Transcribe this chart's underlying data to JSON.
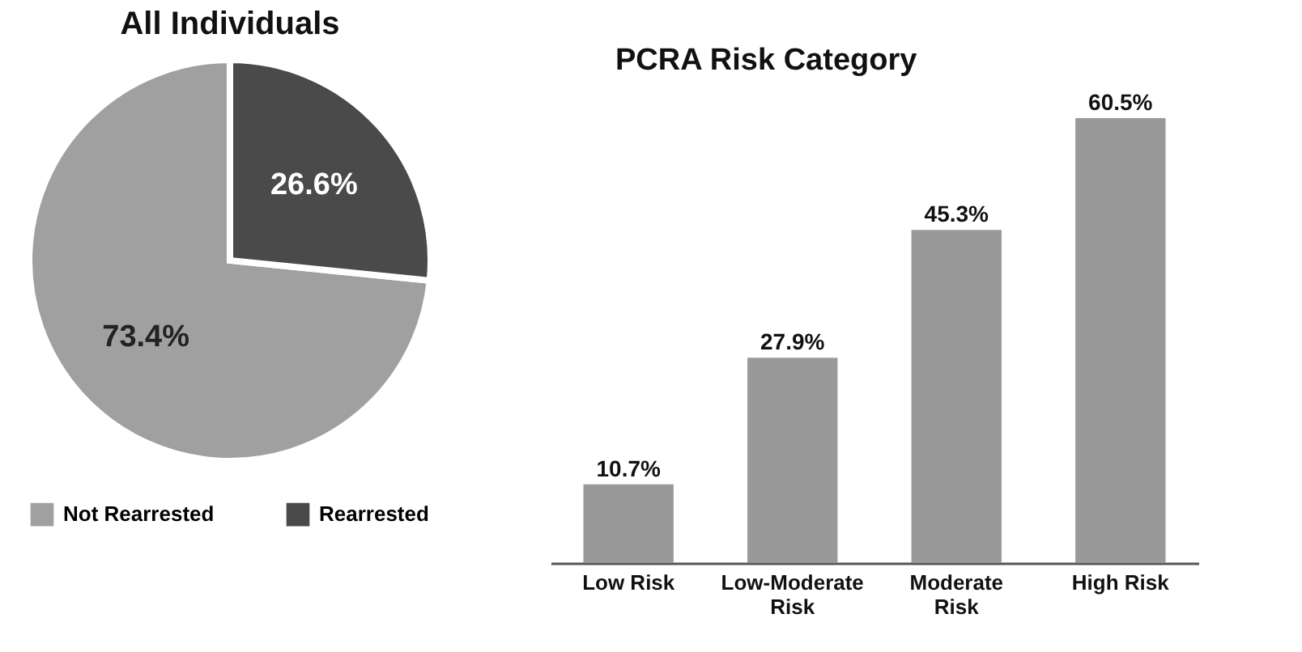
{
  "chart_data": [
    {
      "type": "pie",
      "title": "All Individuals",
      "categories": [
        "Not Rearrested",
        "Rearrested"
      ],
      "values": [
        73.4,
        26.6
      ],
      "colors": [
        "#a0a0a0",
        "#4a4a4a"
      ],
      "value_labels": [
        "73.4%",
        "26.6%"
      ],
      "legend": "bottom"
    },
    {
      "type": "bar",
      "title": "PCRA Risk Category",
      "categories": [
        "Low Risk",
        "Low-Moderate Risk",
        "Moderate Risk",
        "High Risk"
      ],
      "values": [
        10.7,
        27.9,
        45.3,
        60.5
      ],
      "color": "#999999",
      "value_labels": [
        "10.7%",
        "27.9%",
        "45.3%",
        "60.5%"
      ]
    }
  ]
}
